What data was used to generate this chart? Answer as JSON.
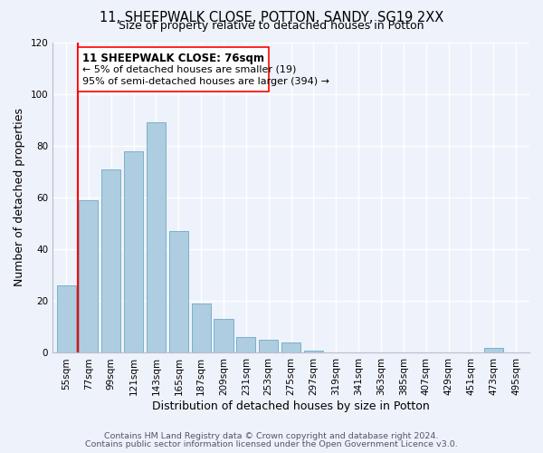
{
  "title": "11, SHEEPWALK CLOSE, POTTON, SANDY, SG19 2XX",
  "subtitle": "Size of property relative to detached houses in Potton",
  "xlabel": "Distribution of detached houses by size in Potton",
  "ylabel": "Number of detached properties",
  "bar_labels": [
    "55sqm",
    "77sqm",
    "99sqm",
    "121sqm",
    "143sqm",
    "165sqm",
    "187sqm",
    "209sqm",
    "231sqm",
    "253sqm",
    "275sqm",
    "297sqm",
    "319sqm",
    "341sqm",
    "363sqm",
    "385sqm",
    "407sqm",
    "429sqm",
    "451sqm",
    "473sqm",
    "495sqm"
  ],
  "bar_values": [
    26,
    59,
    71,
    78,
    89,
    47,
    19,
    13,
    6,
    5,
    4,
    1,
    0,
    0,
    0,
    0,
    0,
    0,
    0,
    2,
    0
  ],
  "bar_color": "#aecde0",
  "bar_edge_color": "#7ab0cc",
  "ylim": [
    0,
    120
  ],
  "yticks": [
    0,
    20,
    40,
    60,
    80,
    100,
    120
  ],
  "property_line_label": "11 SHEEPWALK CLOSE: 76sqm",
  "annotation_line1": "← 5% of detached houses are smaller (19)",
  "annotation_line2": "95% of semi-detached houses are larger (394) →",
  "footer_line1": "Contains HM Land Registry data © Crown copyright and database right 2024.",
  "footer_line2": "Contains public sector information licensed under the Open Government Licence v3.0.",
  "background_color": "#eef2fa",
  "grid_color": "#ffffff",
  "title_fontsize": 10.5,
  "subtitle_fontsize": 9,
  "axis_label_fontsize": 9,
  "tick_fontsize": 7.5,
  "footer_fontsize": 6.8
}
